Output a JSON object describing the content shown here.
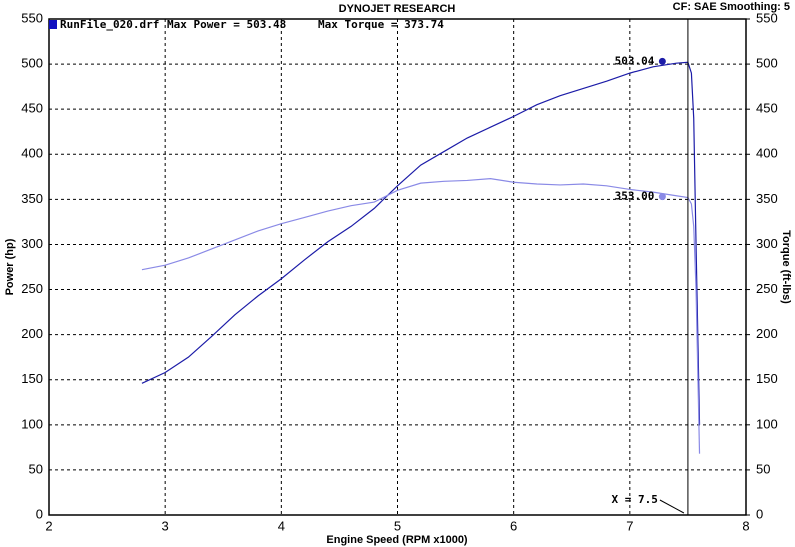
{
  "chart_data": {
    "type": "line",
    "title": "DYNOJET RESEARCH",
    "settings_label": "CF: SAE  Smoothing: 5",
    "run_label": "RunFile_020.drf",
    "max_power_label": "Max Power = 503.48",
    "max_torque_label": "Max Torque = 373.74",
    "xlabel": "Engine Speed (RPM x1000)",
    "ylabel": "Power (hp)",
    "y2label": "Torque (ft-lbs)",
    "xlim": [
      2,
      8
    ],
    "xticks": [
      2,
      3,
      4,
      5,
      6,
      7,
      8
    ],
    "ylim": [
      0,
      550
    ],
    "yticks": [
      0,
      50,
      100,
      150,
      200,
      250,
      300,
      350,
      400,
      450,
      500,
      550
    ],
    "y2lim": [
      0,
      550
    ],
    "y2ticks": [
      0,
      50,
      100,
      150,
      200,
      250,
      300,
      350,
      400,
      450,
      500,
      550
    ],
    "grid": true,
    "x": [
      2.8,
      3.0,
      3.2,
      3.4,
      3.6,
      3.8,
      4.0,
      4.2,
      4.4,
      4.6,
      4.8,
      5.0,
      5.2,
      5.4,
      5.6,
      5.8,
      6.0,
      6.2,
      6.4,
      6.6,
      6.8,
      7.0,
      7.2,
      7.4,
      7.5,
      7.53,
      7.55,
      7.57,
      7.6
    ],
    "series": [
      {
        "color": "#1c1ca8",
        "values": [
          146,
          158,
          175,
          198,
          222,
          243,
          262,
          283,
          303,
          320,
          340,
          365,
          388,
          403,
          418,
          430,
          442,
          455,
          465,
          473,
          481,
          490,
          497,
          501,
          502,
          490,
          440,
          300,
          100
        ]
      },
      {
        "color": "#8a8ae6",
        "axis": "y2",
        "values": [
          272,
          277,
          285,
          295,
          305,
          315,
          323,
          330,
          337,
          343,
          347,
          360,
          368,
          370,
          371,
          373,
          369,
          367,
          366,
          367,
          365,
          361,
          358,
          354,
          352,
          345,
          320,
          250,
          68
        ]
      }
    ],
    "annotations": [
      {
        "text": "503.04",
        "x": 7.28,
        "y": 503.04,
        "color": "#1c1ca8"
      },
      {
        "text": "353.00",
        "x": 7.28,
        "y": 353.0,
        "color": "#8a8ae6"
      }
    ],
    "cursor": {
      "label": "X = 7.5",
      "x": 7.5
    }
  }
}
